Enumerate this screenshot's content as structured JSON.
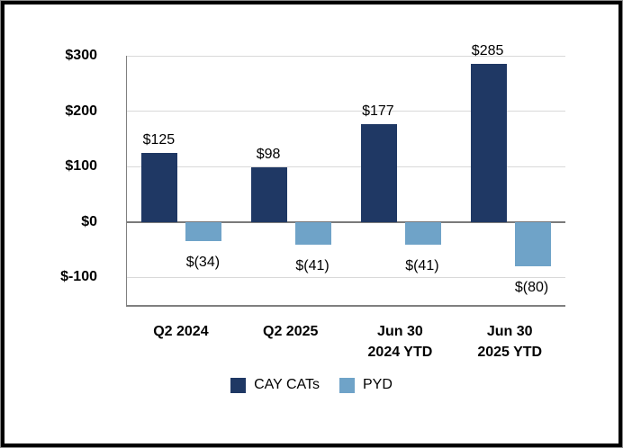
{
  "chart_data": {
    "type": "bar",
    "title": "",
    "xlabel": "",
    "ylabel": "",
    "categories": [
      [
        "Q2 2024"
      ],
      [
        "Q2 2025"
      ],
      [
        "Jun 30",
        "2024 YTD"
      ],
      [
        "Jun 30",
        "2025 YTD"
      ]
    ],
    "series": [
      {
        "name": "CAY CATs",
        "color": "#1F3864",
        "values": [
          125,
          98,
          177,
          285
        ],
        "data_labels": [
          "$125",
          "$98",
          "$177",
          "$285"
        ]
      },
      {
        "name": "PYD",
        "color": "#6FA3C8",
        "values": [
          -34,
          -41,
          -41,
          -80
        ],
        "data_labels": [
          "$(34)",
          "$(41)",
          "$(41)",
          "$(80)"
        ]
      }
    ],
    "y_axis": {
      "tick_values": [
        300,
        200,
        100,
        0,
        -100
      ],
      "tick_labels": [
        "$300",
        "$200",
        "$100",
        "$0",
        "$-100"
      ],
      "max": 300,
      "min": -150
    },
    "grid": true,
    "legend_position": "bottom",
    "colors": {
      "grid_line": "#D9D9D9",
      "axis_line": "#808080",
      "zero_line": "#7A7A7A",
      "frame_border": "#000000",
      "frame_outline": "#8A8A8A",
      "background": "#FFFFFF",
      "text": "#000000"
    }
  }
}
